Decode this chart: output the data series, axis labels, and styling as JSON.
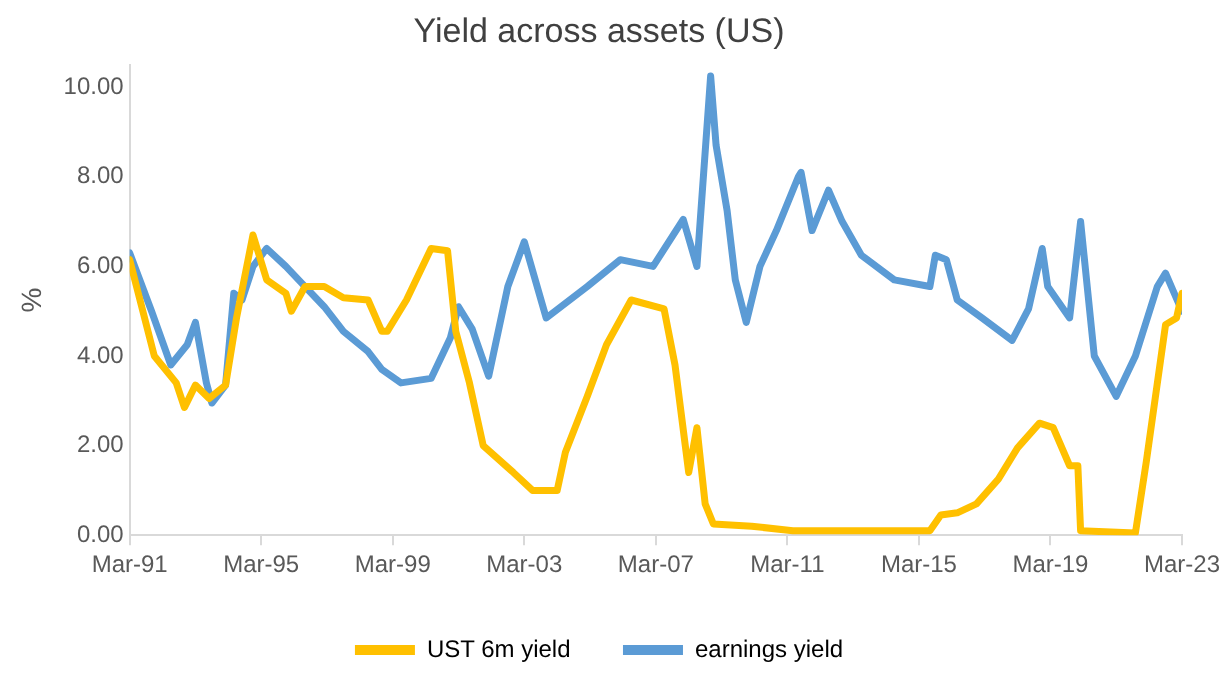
{
  "chart_data": {
    "type": "line",
    "title": "Yield across assets (US)",
    "ylabel": "%",
    "legend": "bottom",
    "grid": false,
    "marker": "none",
    "line_style": "solid",
    "xlim": [
      "1991-03",
      "2023-03"
    ],
    "xticks": [
      {
        "value": "1991-03",
        "label": "Mar-91"
      },
      {
        "value": "1995-03",
        "label": "Mar-95"
      },
      {
        "value": "1999-03",
        "label": "Mar-99"
      },
      {
        "value": "2003-03",
        "label": "Mar-03"
      },
      {
        "value": "2007-03",
        "label": "Mar-07"
      },
      {
        "value": "2011-03",
        "label": "Mar-11"
      },
      {
        "value": "2015-03",
        "label": "Mar-15"
      },
      {
        "value": "2019-03",
        "label": "Mar-19"
      },
      {
        "value": "2023-03",
        "label": "Mar-23"
      }
    ],
    "ylim": [
      0,
      10.5
    ],
    "yticks": [
      {
        "value": 0,
        "label": "0.00"
      },
      {
        "value": 2,
        "label": "2.00"
      },
      {
        "value": 4,
        "label": "4.00"
      },
      {
        "value": 6,
        "label": "6.00"
      },
      {
        "value": 8,
        "label": "8.00"
      },
      {
        "value": 10,
        "label": "10.00"
      }
    ],
    "series": [
      {
        "name": "UST 6m yield",
        "color": "#ffc000",
        "x": [
          "1991-03",
          "1991-12",
          "1992-08",
          "1992-11",
          "1993-03",
          "1993-08",
          "1994-02",
          "1994-06",
          "1994-12",
          "1995-05",
          "1995-12",
          "1996-02",
          "1996-07",
          "1997-02",
          "1997-09",
          "1998-06",
          "1998-11",
          "1999-01",
          "1999-08",
          "2000-05",
          "2000-11",
          "2001-02",
          "2001-07",
          "2001-12",
          "2002-11",
          "2003-06",
          "2004-03",
          "2004-06",
          "2005-02",
          "2005-09",
          "2006-06",
          "2007-06",
          "2007-10",
          "2008-03",
          "2008-06",
          "2008-09",
          "2008-12",
          "2010-02",
          "2011-05",
          "2013-06",
          "2015-07",
          "2015-11",
          "2016-05",
          "2016-12",
          "2017-08",
          "2018-03",
          "2018-11",
          "2019-04",
          "2019-10",
          "2020-01",
          "2020-02",
          "2021-10",
          "2022-02",
          "2022-09",
          "2023-01",
          "2023-03"
        ],
        "values": [
          6.15,
          4.0,
          3.4,
          2.85,
          3.35,
          3.05,
          3.35,
          4.85,
          6.7,
          5.7,
          5.4,
          5.0,
          5.55,
          5.55,
          5.3,
          5.25,
          4.55,
          4.55,
          5.25,
          6.4,
          6.35,
          4.55,
          3.4,
          2.0,
          1.4,
          1.0,
          1.0,
          1.85,
          3.1,
          4.25,
          5.25,
          5.05,
          3.8,
          1.4,
          2.4,
          0.7,
          0.25,
          0.2,
          0.1,
          0.1,
          0.1,
          0.45,
          0.5,
          0.7,
          1.25,
          1.95,
          2.5,
          2.4,
          1.55,
          1.55,
          0.1,
          0.05,
          1.65,
          4.7,
          4.85,
          5.4
        ]
      },
      {
        "name": "earnings yield",
        "color": "#5b9bd5",
        "x": [
          "1991-03",
          "1991-11",
          "1992-06",
          "1992-12",
          "1993-03",
          "1993-07",
          "1993-09",
          "1994-02",
          "1994-05",
          "1994-08",
          "1994-12",
          "1995-05",
          "1995-12",
          "1996-07",
          "1997-02",
          "1997-09",
          "1998-06",
          "1998-11",
          "1999-06",
          "2000-05",
          "2000-12",
          "2001-03",
          "2001-08",
          "2002-02",
          "2002-09",
          "2003-03",
          "2003-11",
          "2005-02",
          "2006-02",
          "2007-02",
          "2008-01",
          "2008-06",
          "2008-11",
          "2009-01",
          "2009-05",
          "2009-08",
          "2009-12",
          "2010-05",
          "2010-11",
          "2011-07",
          "2011-08",
          "2011-12",
          "2012-06",
          "2012-11",
          "2013-06",
          "2014-06",
          "2015-07",
          "2015-09",
          "2016-01",
          "2016-05",
          "2017-02",
          "2018-01",
          "2018-07",
          "2018-12",
          "2019-02",
          "2019-10",
          "2020-02",
          "2020-07",
          "2021-03",
          "2021-10",
          "2022-06",
          "2022-09",
          "2023-03"
        ],
        "values": [
          6.3,
          5.0,
          3.8,
          4.25,
          4.75,
          3.4,
          2.95,
          3.35,
          5.4,
          5.25,
          6.0,
          6.4,
          6.0,
          5.55,
          5.1,
          4.55,
          4.1,
          3.7,
          3.4,
          3.5,
          4.4,
          5.1,
          4.6,
          3.55,
          5.55,
          6.55,
          4.85,
          5.55,
          6.15,
          6.0,
          7.05,
          6.0,
          10.25,
          8.7,
          7.25,
          5.7,
          4.75,
          6.0,
          6.8,
          8.0,
          8.1,
          6.8,
          7.7,
          7.0,
          6.25,
          5.7,
          5.55,
          6.25,
          6.15,
          5.25,
          4.85,
          4.35,
          5.05,
          6.4,
          5.55,
          4.85,
          7.0,
          4.0,
          3.1,
          4.0,
          5.55,
          5.85,
          5.0
        ]
      }
    ]
  }
}
